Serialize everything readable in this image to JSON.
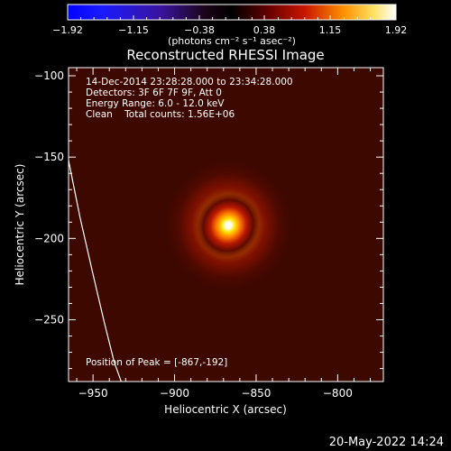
{
  "colorbar": {
    "ticks": [
      -1.92,
      -1.15,
      -0.38,
      0.38,
      1.15,
      1.92
    ],
    "tick_labels": [
      "−1.92",
      "−1.15",
      "−0.38",
      "0.38",
      "1.15",
      "1.92"
    ],
    "unit_label": "(photons cm⁻² s⁻¹ asec⁻²)",
    "range": [
      -1.92,
      1.92
    ]
  },
  "chart_data": {
    "type": "heatmap",
    "title": "Reconstructed RHESSI Image",
    "xlabel": "Heliocentric X (arcsec)",
    "ylabel": "Heliocentric Y (arcsec)",
    "xlim": [
      -965,
      -772
    ],
    "ylim": [
      -288,
      -95
    ],
    "xticks": [
      -950,
      -900,
      -850,
      -800
    ],
    "yticks": [
      -100,
      -150,
      -200,
      -250
    ],
    "xtick_labels": [
      "−950",
      "−900",
      "−850",
      "−800"
    ],
    "ytick_labels": [
      "−100",
      "−150",
      "−200",
      "−250"
    ],
    "source_peak": {
      "x": -867,
      "y": -192,
      "value": 1.92
    },
    "background_value": 0.22,
    "limb_curve": {
      "x": [
        -965,
        -958,
        -950,
        -943,
        -937,
        -932
      ],
      "y": [
        -152,
        -187,
        -222,
        -252,
        -276,
        -290
      ]
    }
  },
  "annotations": {
    "line1": "14-Dec-2014 23:28:28.000 to 23:34:28.000",
    "line2": "Detectors: 3F 6F 7F 9F, Att 0",
    "line3": "Energy Range: 6.0 - 12.0 keV",
    "line4": "Clean    Total counts: 1.56E+06",
    "peak": "Position of Peak = [-867,-192]"
  },
  "footer": {
    "date": "20-May-2022 14:24"
  }
}
